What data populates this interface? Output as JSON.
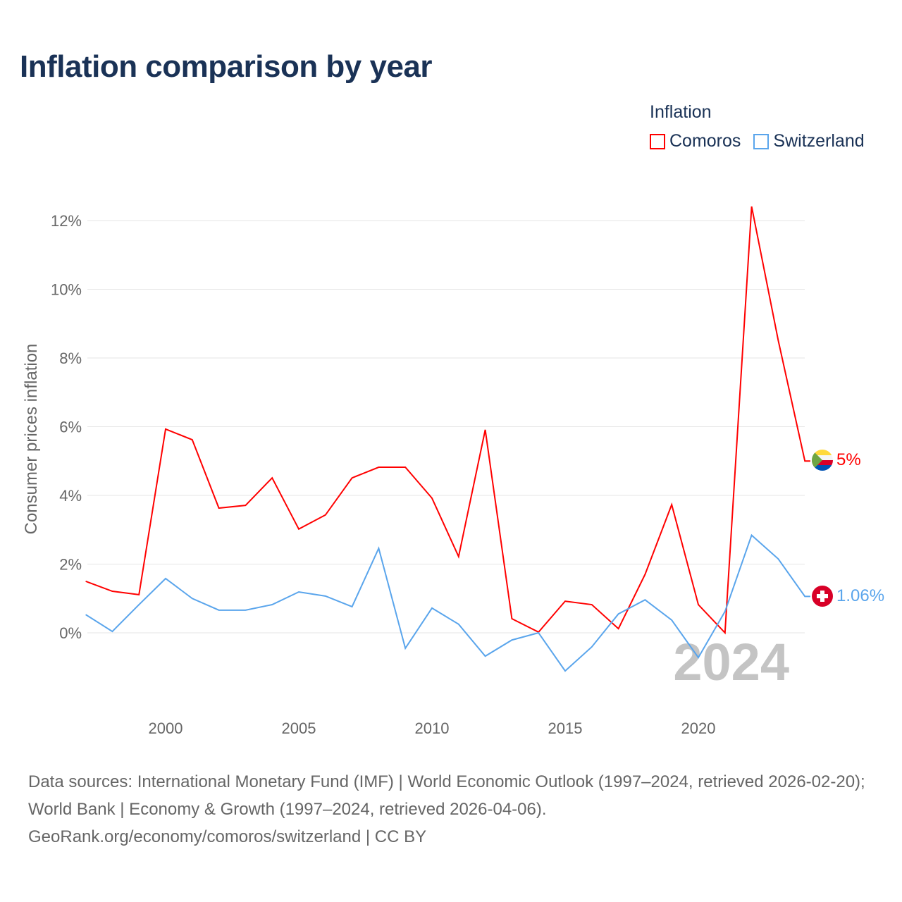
{
  "title": "Inflation comparison by year",
  "legend": {
    "title": "Inflation",
    "items": [
      {
        "label": "Comoros",
        "color": "#ff0000"
      },
      {
        "label": "Switzerland",
        "color": "#5aa5ec"
      }
    ]
  },
  "year_watermark": "2024",
  "end_labels": {
    "comoros": "5%",
    "switzerland": "1.06%"
  },
  "source_text": "Data sources: International Monetary Fund (IMF) | World Economic Outlook (1997–2024, retrieved 2026-02-20); World Bank | Economy & Growth (1997–2024, retrieved 2026-04-06).",
  "source_link": "GeoRank.org/economy/comoros/switzerland | CC BY",
  "chart_data": {
    "type": "line",
    "title": "Inflation comparison by year",
    "ylabel": "Consumer prices inflation",
    "xlabel": "",
    "x": [
      1997,
      1998,
      1999,
      2000,
      2001,
      2002,
      2003,
      2004,
      2005,
      2006,
      2007,
      2008,
      2009,
      2010,
      2011,
      2012,
      2013,
      2014,
      2015,
      2016,
      2017,
      2018,
      2019,
      2020,
      2021,
      2022,
      2023,
      2024
    ],
    "xlim": [
      1997,
      2024
    ],
    "ylim": [
      -2.2,
      12.4
    ],
    "x_ticks": [
      {
        "value": 2000,
        "label": "2000"
      },
      {
        "value": 2005,
        "label": "2005"
      },
      {
        "value": 2010,
        "label": "2010"
      },
      {
        "value": 2015,
        "label": "2015"
      },
      {
        "value": 2020,
        "label": "2020"
      }
    ],
    "y_ticks": [
      {
        "value": 0,
        "label": "0%"
      },
      {
        "value": 2,
        "label": "2%"
      },
      {
        "value": 4,
        "label": "4%"
      },
      {
        "value": 6,
        "label": "6%"
      },
      {
        "value": 8,
        "label": "8%"
      },
      {
        "value": 10,
        "label": "10%"
      },
      {
        "value": 12,
        "label": "12%"
      }
    ],
    "grid": true,
    "legend_position": "top-right",
    "series": [
      {
        "name": "Comoros",
        "color": "#ff0000",
        "values": [
          1.5,
          1.21,
          1.11,
          5.93,
          5.62,
          3.63,
          3.71,
          4.51,
          3.02,
          3.43,
          4.51,
          4.82,
          4.82,
          3.92,
          2.22,
          5.91,
          0.41,
          0.02,
          0.92,
          0.82,
          0.12,
          1.7,
          3.73,
          0.82,
          0.0,
          12.41,
          8.51,
          5.0
        ]
      },
      {
        "name": "Switzerland",
        "color": "#5aa5ec",
        "values": [
          0.53,
          0.04,
          0.82,
          1.58,
          1.0,
          0.66,
          0.66,
          0.82,
          1.19,
          1.07,
          0.76,
          2.46,
          -0.45,
          0.72,
          0.25,
          -0.68,
          -0.21,
          0.0,
          -1.11,
          -0.41,
          0.55,
          0.96,
          0.37,
          -0.72,
          0.62,
          2.84,
          2.15,
          1.06
        ]
      }
    ]
  }
}
